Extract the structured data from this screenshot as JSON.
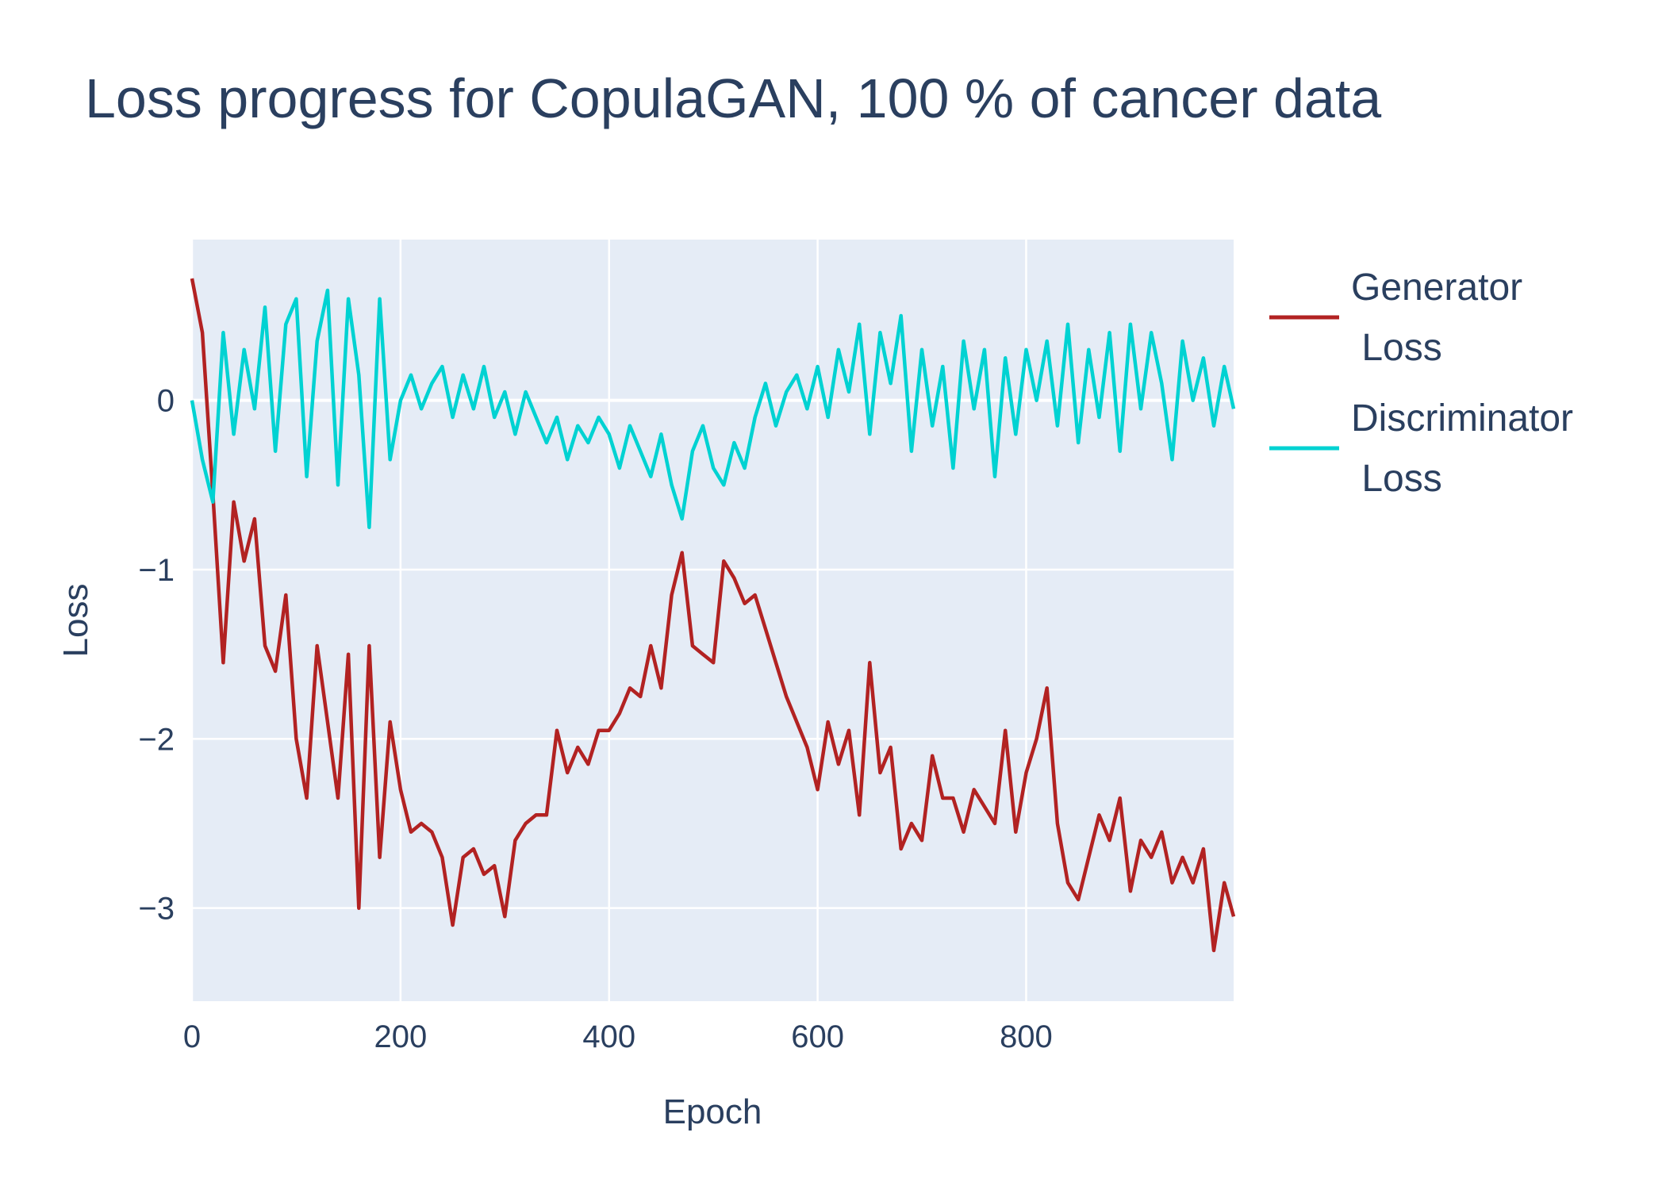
{
  "chart_data": {
    "type": "line",
    "title": "Loss progress for CopulaGAN, 100 % of cancer data",
    "xlabel": "Epoch",
    "ylabel": "Loss",
    "xlim": [
      0,
      999
    ],
    "ylim": [
      -3.55,
      0.95
    ],
    "xticks": [
      0,
      200,
      400,
      600,
      800
    ],
    "xtick_labels": [
      "0",
      "200",
      "400",
      "600",
      "800"
    ],
    "yticks": [
      0,
      -1,
      -2,
      -3
    ],
    "ytick_labels": [
      "0",
      "−1",
      "−2",
      "−3"
    ],
    "grid": true,
    "legend_position": "right",
    "plot_background": "#e5ecf6",
    "series": [
      {
        "name": "Generator\n Loss",
        "color": "#b22222",
        "x": [
          0,
          10,
          20,
          30,
          40,
          50,
          60,
          70,
          80,
          90,
          100,
          110,
          120,
          130,
          140,
          150,
          160,
          170,
          180,
          190,
          200,
          210,
          220,
          230,
          240,
          250,
          260,
          270,
          280,
          290,
          300,
          310,
          320,
          330,
          340,
          350,
          360,
          370,
          380,
          390,
          400,
          410,
          420,
          430,
          440,
          450,
          460,
          470,
          480,
          490,
          500,
          510,
          520,
          530,
          540,
          550,
          560,
          570,
          580,
          590,
          600,
          610,
          620,
          630,
          640,
          650,
          660,
          670,
          680,
          690,
          700,
          710,
          720,
          730,
          740,
          750,
          760,
          770,
          780,
          790,
          800,
          810,
          820,
          830,
          840,
          850,
          860,
          870,
          880,
          890,
          900,
          910,
          920,
          930,
          940,
          950,
          960,
          970,
          980,
          990,
          999
        ],
        "y": [
          0.72,
          0.4,
          -0.55,
          -1.55,
          -0.6,
          -0.95,
          -0.7,
          -1.45,
          -1.6,
          -1.15,
          -2.0,
          -2.35,
          -1.45,
          -1.9,
          -2.35,
          -1.5,
          -3.0,
          -1.45,
          -2.7,
          -1.9,
          -2.3,
          -2.55,
          -2.5,
          -2.55,
          -2.7,
          -3.1,
          -2.7,
          -2.65,
          -2.8,
          -2.75,
          -3.05,
          -2.6,
          -2.5,
          -2.45,
          -2.45,
          -1.95,
          -2.2,
          -2.05,
          -2.15,
          -1.95,
          -1.95,
          -1.85,
          -1.7,
          -1.75,
          -1.45,
          -1.7,
          -1.15,
          -0.9,
          -1.45,
          -1.5,
          -1.55,
          -0.95,
          -1.05,
          -1.2,
          -1.15,
          -1.35,
          -1.55,
          -1.75,
          -1.9,
          -2.05,
          -2.3,
          -1.9,
          -2.15,
          -1.95,
          -2.45,
          -1.55,
          -2.2,
          -2.05,
          -2.65,
          -2.5,
          -2.6,
          -2.1,
          -2.35,
          -2.35,
          -2.55,
          -2.3,
          -2.4,
          -2.5,
          -1.95,
          -2.55,
          -2.2,
          -2.0,
          -1.7,
          -2.5,
          -2.85,
          -2.95,
          -2.7,
          -2.45,
          -2.6,
          -2.35,
          -2.9,
          -2.6,
          -2.7,
          -2.55,
          -2.85,
          -2.7,
          -2.85,
          -2.65,
          -3.25,
          -2.85,
          -3.05
        ]
      },
      {
        "name": "Discriminator\n Loss",
        "color": "#00d2d2",
        "x": [
          0,
          10,
          20,
          30,
          40,
          50,
          60,
          70,
          80,
          90,
          100,
          110,
          120,
          130,
          140,
          150,
          160,
          170,
          180,
          190,
          200,
          210,
          220,
          230,
          240,
          250,
          260,
          270,
          280,
          290,
          300,
          310,
          320,
          330,
          340,
          350,
          360,
          370,
          380,
          390,
          400,
          410,
          420,
          430,
          440,
          450,
          460,
          470,
          480,
          490,
          500,
          510,
          520,
          530,
          540,
          550,
          560,
          570,
          580,
          590,
          600,
          610,
          620,
          630,
          640,
          650,
          660,
          670,
          680,
          690,
          700,
          710,
          720,
          730,
          740,
          750,
          760,
          770,
          780,
          790,
          800,
          810,
          820,
          830,
          840,
          850,
          860,
          870,
          880,
          890,
          900,
          910,
          920,
          930,
          940,
          950,
          960,
          970,
          980,
          990,
          999
        ],
        "y": [
          0.0,
          -0.35,
          -0.6,
          0.4,
          -0.2,
          0.3,
          -0.05,
          0.55,
          -0.3,
          0.45,
          0.6,
          -0.45,
          0.35,
          0.65,
          -0.5,
          0.6,
          0.15,
          -0.75,
          0.6,
          -0.35,
          0.0,
          0.15,
          -0.05,
          0.1,
          0.2,
          -0.1,
          0.15,
          -0.05,
          0.2,
          -0.1,
          0.05,
          -0.2,
          0.05,
          -0.1,
          -0.25,
          -0.1,
          -0.35,
          -0.15,
          -0.25,
          -0.1,
          -0.2,
          -0.4,
          -0.15,
          -0.3,
          -0.45,
          -0.2,
          -0.5,
          -0.7,
          -0.3,
          -0.15,
          -0.4,
          -0.5,
          -0.25,
          -0.4,
          -0.1,
          0.1,
          -0.15,
          0.05,
          0.15,
          -0.05,
          0.2,
          -0.1,
          0.3,
          0.05,
          0.45,
          -0.2,
          0.4,
          0.1,
          0.5,
          -0.3,
          0.3,
          -0.15,
          0.2,
          -0.4,
          0.35,
          -0.05,
          0.3,
          -0.45,
          0.25,
          -0.2,
          0.3,
          0.0,
          0.35,
          -0.15,
          0.45,
          -0.25,
          0.3,
          -0.1,
          0.4,
          -0.3,
          0.45,
          -0.05,
          0.4,
          0.1,
          -0.35,
          0.35,
          0.0,
          0.25,
          -0.15,
          0.2,
          -0.05
        ]
      }
    ]
  }
}
